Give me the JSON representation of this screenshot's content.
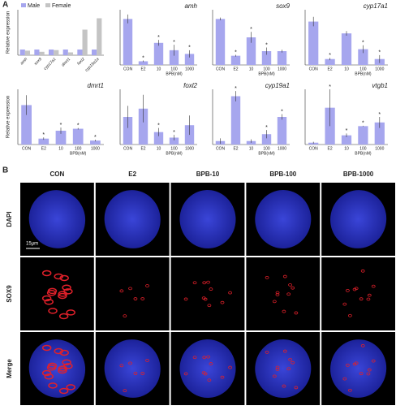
{
  "labels": {
    "panel_a": "A",
    "panel_b": "B"
  },
  "chart_data": [
    {
      "type": "grouped-bar",
      "y_label": "Relative expression",
      "categories": [
        "amh",
        "sox9",
        "cyp17a1",
        "dmrt1",
        "foxl2",
        "cyp19a1a"
      ],
      "ylim": [
        0,
        8
      ],
      "legend": "top-left",
      "series": [
        {
          "name": "Male",
          "color": "#a6a6ee",
          "values": [
            1,
            1,
            1,
            1,
            1,
            1
          ]
        },
        {
          "name": "Female",
          "color": "#c4c4c4",
          "values": [
            0.8,
            0.6,
            0.9,
            0.5,
            4.5,
            6.5
          ]
        }
      ]
    },
    {
      "type": "bar",
      "title": "amh",
      "categories": [
        "CON",
        "E2",
        "10",
        "100",
        "1000"
      ],
      "x_label": "BPB(nM)",
      "values": [
        1.25,
        0.1,
        0.6,
        0.4,
        0.3
      ],
      "errors": [
        0.12,
        0.02,
        0.08,
        0.15,
        0.1
      ],
      "annotations": [
        null,
        "*",
        "*",
        "*",
        "*"
      ],
      "ylim": [
        0,
        1.5
      ],
      "color": "#a6a6ee"
    },
    {
      "type": "bar",
      "title": "sox9",
      "categories": [
        "CON",
        "E2",
        "10",
        "100",
        "1000"
      ],
      "x_label": "BPB(nM)",
      "values": [
        1.0,
        0.2,
        0.6,
        0.3,
        0.3
      ],
      "errors": [
        0.03,
        0.02,
        0.12,
        0.08,
        0.03
      ],
      "annotations": [
        null,
        "*",
        "*",
        "*",
        null
      ],
      "ylim": [
        0,
        1.2
      ],
      "color": "#a6a6ee"
    },
    {
      "type": "bar",
      "title": "cyp17a1",
      "categories": [
        "CON",
        "E2",
        "10",
        "100",
        "1000"
      ],
      "x_label": "BPB(nM)",
      "values": [
        1.1,
        0.15,
        0.8,
        0.4,
        0.15
      ],
      "errors": [
        0.12,
        0.03,
        0.06,
        0.1,
        0.1
      ],
      "annotations": [
        null,
        "*",
        null,
        "*",
        "*"
      ],
      "ylim": [
        0,
        1.4
      ],
      "color": "#a6a6ee"
    },
    {
      "type": "bar",
      "title": "dmrt1",
      "y_label": "Relative expression",
      "categories": [
        "CON",
        "E2",
        "10",
        "100",
        "1000"
      ],
      "x_label": "BPB(nM)",
      "values": [
        1.0,
        0.15,
        0.35,
        0.4,
        0.1
      ],
      "errors": [
        0.25,
        0.03,
        0.08,
        0.02,
        0.02
      ],
      "annotations": [
        null,
        "*",
        "*",
        "*",
        "*"
      ],
      "ylim": [
        0,
        1.4
      ],
      "color": "#a6a6ee"
    },
    {
      "type": "bar",
      "title": "foxl2",
      "categories": [
        "CON",
        "E2",
        "10",
        "100",
        "1000"
      ],
      "x_label": "BPB(nM)",
      "values": [
        1.0,
        1.3,
        0.45,
        0.25,
        0.7
      ],
      "errors": [
        0.4,
        0.5,
        0.15,
        0.1,
        0.35
      ],
      "annotations": [
        null,
        null,
        "*",
        "*",
        null
      ],
      "ylim": [
        0,
        2
      ],
      "color": "#a6a6ee"
    },
    {
      "type": "bar",
      "title": "cyp19a1",
      "categories": [
        "CON",
        "E2",
        "10",
        "100",
        "1000"
      ],
      "x_label": "BPB(nM)",
      "values": [
        1.0,
        14,
        1.0,
        3,
        8
      ],
      "errors": [
        0.8,
        1.5,
        0.5,
        1.2,
        0.8
      ],
      "annotations": [
        null,
        "*",
        null,
        "*",
        "*"
      ],
      "ylim": [
        0,
        16
      ],
      "color": "#a6a6ee"
    },
    {
      "type": "bar",
      "title": "vtgb1",
      "categories": [
        "CON",
        "E2",
        "10",
        "100",
        "1000"
      ],
      "x_label": "BPB(nM)",
      "values": [
        1,
        20,
        5,
        10,
        12
      ],
      "errors": [
        0.5,
        10,
        1,
        0.2,
        3
      ],
      "annotations": [
        null,
        "*",
        "*",
        "*",
        "*"
      ],
      "ylim": [
        0,
        30
      ],
      "color": "#a6a6ee"
    }
  ],
  "panel_b": {
    "columns": [
      "CON",
      "E2",
      "BPB-10",
      "BPB-100",
      "BPB-1000"
    ],
    "rows": [
      "DAPI",
      "SOX9",
      "Merge"
    ],
    "scale_bar": "15μm"
  }
}
